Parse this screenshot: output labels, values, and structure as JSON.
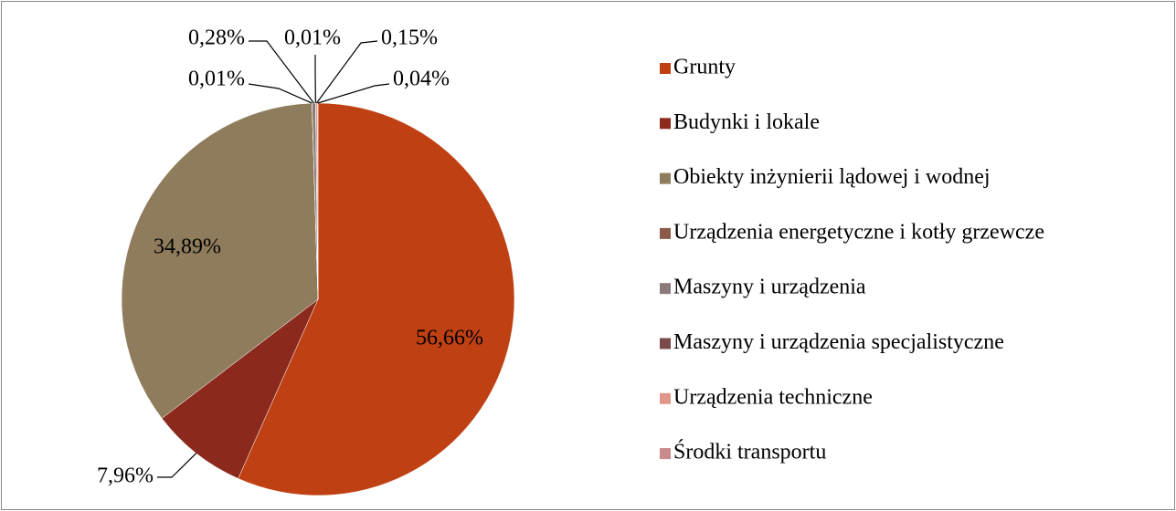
{
  "chart_data": {
    "type": "pie",
    "categories": [
      "Grunty",
      "Budynki i lokale",
      "Obiekty inżynierii lądowej i wodnej",
      "Urządzenia energetyczne i kotły grzewcze",
      "Maszyny i urządzenia",
      "Maszyny i urządzenia specjalistyczne",
      "Urządzenia techniczne",
      "Środki transportu"
    ],
    "values": [
      56.66,
      7.96,
      34.89,
      0.01,
      0.28,
      0.01,
      0.15,
      0.04
    ],
    "value_labels": [
      "56,66%",
      "7,96%",
      "34,89%",
      "0,01%",
      "0,28%",
      "0,01%",
      "0,15%",
      "0,04%"
    ],
    "colors": [
      "#bf4013",
      "#8b2a1c",
      "#8f7c5c",
      "#8b5a4a",
      "#8a7a7a",
      "#7a4a4a",
      "#e0968a",
      "#c88a8a"
    ],
    "legend": "right"
  }
}
